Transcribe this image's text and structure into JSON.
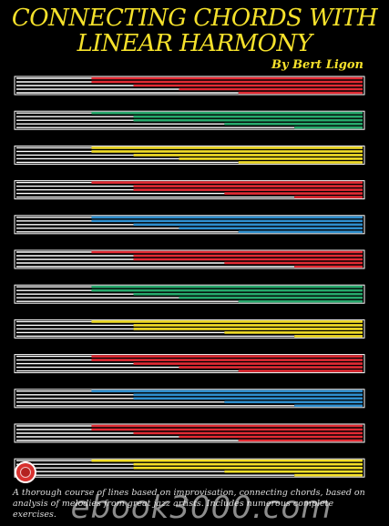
{
  "cover": {
    "title_line1": "CONNECTING CHORDS WITH",
    "title_line2": "LINEAR HARMONY",
    "author": "By Bert Ligon",
    "blurb": "A thorough course of lines based on improvisation, connecting chords, based on analysis of melodies from great jazz artists. Includes numerous complete exercises.",
    "watermark": "ebook3000.com"
  },
  "colors": {
    "background": "#000000",
    "title": "#f5e12b",
    "staff_white": "#ffffff",
    "red": "#e32b34",
    "green": "#27a96c",
    "yellow": "#f4df28",
    "blue": "#2f8fce"
  },
  "staves": [
    {
      "color": "red"
    },
    {
      "color": "green"
    },
    {
      "color": "yellow"
    },
    {
      "color": "red"
    },
    {
      "color": "blue"
    },
    {
      "color": "red"
    },
    {
      "color": "green"
    },
    {
      "color": "yellow"
    },
    {
      "color": "red"
    },
    {
      "color": "blue"
    },
    {
      "color": "red"
    },
    {
      "color": "yellow"
    }
  ]
}
